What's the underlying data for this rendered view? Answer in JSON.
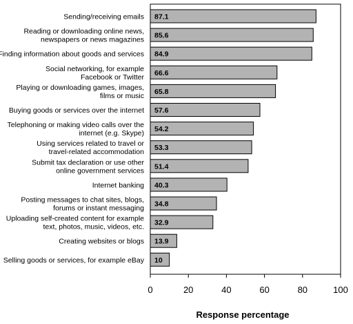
{
  "chart_data": {
    "type": "bar",
    "orientation": "horizontal",
    "categories": [
      [
        "Sending/receiving emails"
      ],
      [
        "Reading or downloading online news,",
        "newspapers or news magazines"
      ],
      [
        "Finding information about goods and services"
      ],
      [
        "Social networking, for example",
        "Facebook or Twitter"
      ],
      [
        "Playing or downloading games, images,",
        "films or music"
      ],
      [
        "Buying goods or services over the internet"
      ],
      [
        "Telephoning or making video calls over the",
        "internet (e.g. Skype)"
      ],
      [
        "Using services related to travel or",
        "travel-related accommodation"
      ],
      [
        "Submit tax declaration or use other",
        "online government services"
      ],
      [
        "Internet banking"
      ],
      [
        "Posting messages to chat sites, blogs,",
        "forums or instant messaging"
      ],
      [
        "Uploading self-created content for example",
        "text, photos, music, videos, etc."
      ],
      [
        "Creating websites or blogs"
      ],
      [
        "Selling goods or services, for example eBay"
      ]
    ],
    "values": [
      87.1,
      85.6,
      84.9,
      66.6,
      65.8,
      57.6,
      54.2,
      53.3,
      51.4,
      40.3,
      34.8,
      32.9,
      13.9,
      10
    ],
    "value_labels": [
      "87.1",
      "85.6",
      "84.9",
      "66.6",
      "65.8",
      "57.6",
      "54.2",
      "53.3",
      "51.4",
      "40.3",
      "34.8",
      "32.9",
      "13.9",
      "10"
    ],
    "xlabel": "Response percentage",
    "xlim": [
      0,
      100
    ],
    "xticks": [
      0,
      20,
      40,
      60,
      80,
      100
    ],
    "grid": false,
    "bar_color": "#b3b3b3",
    "bar_edge_color": "#000000"
  }
}
